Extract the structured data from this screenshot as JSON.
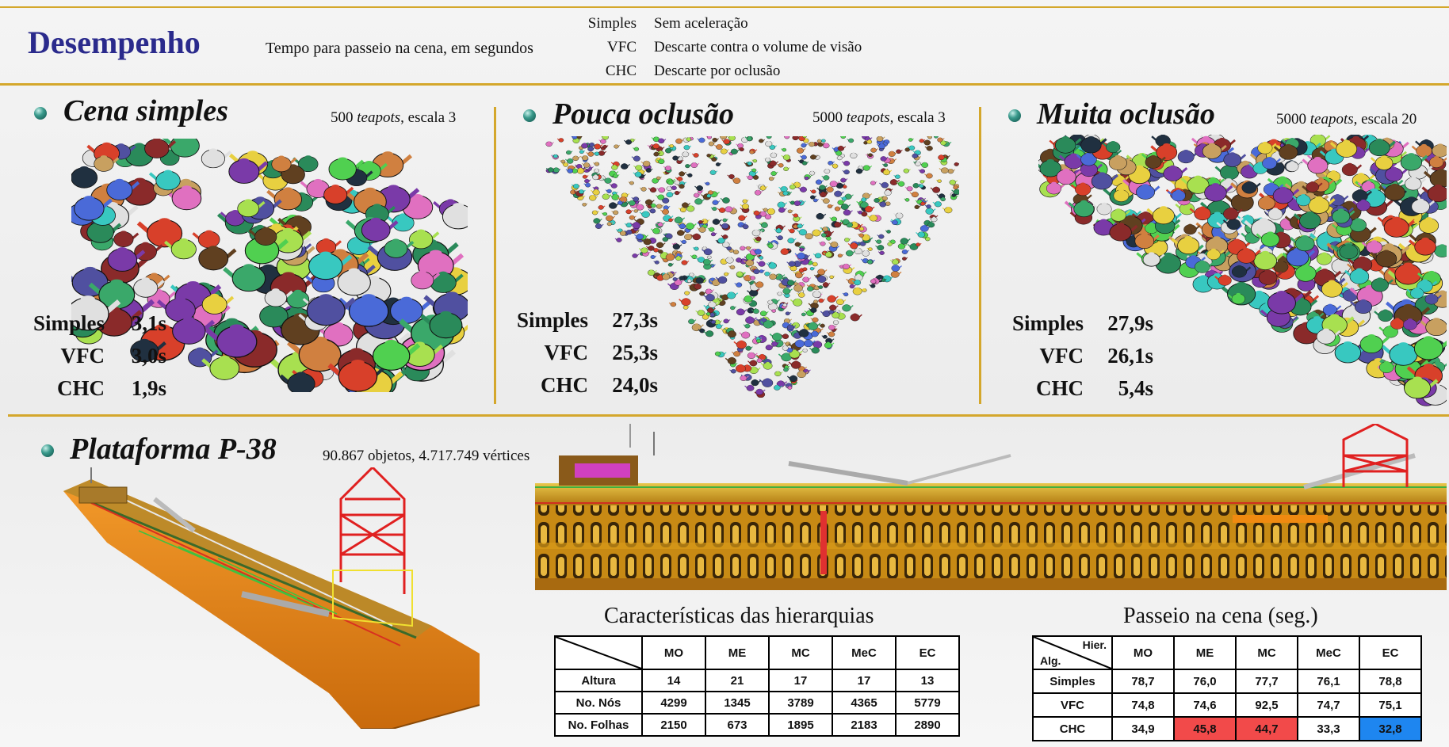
{
  "header": {
    "title": "Desempenho",
    "subtitle": "Tempo para passeio na cena, em segundos",
    "legend": [
      {
        "key": "Simples",
        "desc": "Sem aceleração"
      },
      {
        "key": "VFC",
        "desc": "Descarte contra o volume de visão"
      },
      {
        "key": "CHC",
        "desc": "Descarte por oclusão"
      }
    ]
  },
  "panels": [
    {
      "title": "Cena simples",
      "info_count": "500",
      "info_word": "teapots",
      "info_rest": ", escala 3",
      "times": [
        {
          "alg": "Simples",
          "t": "3,1s"
        },
        {
          "alg": "VFC",
          "t": "3,0s"
        },
        {
          "alg": "CHC",
          "t": "1,9s"
        }
      ]
    },
    {
      "title": "Pouca oclusão",
      "info_count": "5000",
      "info_word": "teapots",
      "info_rest": ", escala 3",
      "times": [
        {
          "alg": "Simples",
          "t": "27,3s"
        },
        {
          "alg": "VFC",
          "t": "25,3s"
        },
        {
          "alg": "CHC",
          "t": "24,0s"
        }
      ]
    },
    {
      "title": "Muita oclusão",
      "info_count": "5000",
      "info_word": "teapots",
      "info_rest": ", escala 20",
      "times": [
        {
          "alg": "Simples",
          "t": "27,9s"
        },
        {
          "alg": "VFC",
          "t": "26,1s"
        },
        {
          "alg": "CHC",
          "t": "5,4s"
        }
      ]
    }
  ],
  "platform": {
    "title": "Plataforma P-38",
    "info": "90.867 objetos, 4.717.749 vértices"
  },
  "hierarchy_table": {
    "title": "Características das hierarquias",
    "columns": [
      "MO",
      "ME",
      "MC",
      "MeC",
      "EC"
    ],
    "rows": [
      {
        "label": "Altura",
        "values": [
          "14",
          "21",
          "17",
          "17",
          "13"
        ]
      },
      {
        "label": "No. Nós",
        "values": [
          "4299",
          "1345",
          "3789",
          "4365",
          "5779"
        ]
      },
      {
        "label": "No. Folhas",
        "values": [
          "2150",
          "673",
          "1895",
          "2183",
          "2890"
        ]
      }
    ]
  },
  "walk_table": {
    "title": "Passeio na cena (seg.)",
    "corner_top": "Hier.",
    "corner_bottom": "Alg.",
    "columns": [
      "MO",
      "ME",
      "MC",
      "MeC",
      "EC"
    ],
    "rows": [
      {
        "label": "Simples",
        "values": [
          "78,7",
          "76,0",
          "77,7",
          "76,1",
          "78,8"
        ]
      },
      {
        "label": "VFC",
        "values": [
          "74,8",
          "74,6",
          "92,5",
          "74,7",
          "75,1"
        ]
      },
      {
        "label": "CHC",
        "values": [
          "34,9",
          "45,8",
          "44,7",
          "33,3",
          "32,8"
        ]
      }
    ],
    "highlight_colors": {
      "slow": "#f24a4a",
      "best": "#1e86f0"
    }
  }
}
